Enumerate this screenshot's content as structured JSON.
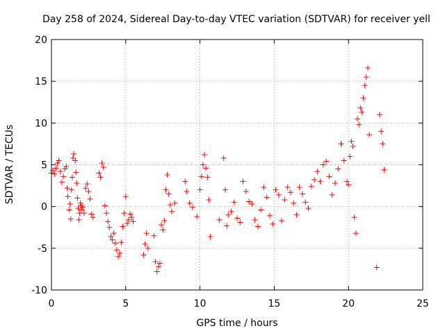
{
  "chart_data": {
    "type": "scatter",
    "title": "Day 258 of 2024, Sidereal Day-to-day VTEC variation (SDTVAR) for receiver yell",
    "xlabel": "GPS time / hours",
    "ylabel": "SDTVAR / TECUs",
    "xlim": [
      0,
      25
    ],
    "ylim": [
      -10,
      20
    ],
    "xticks": [
      0,
      5,
      10,
      15,
      20,
      25
    ],
    "yticks": [
      -10,
      -5,
      0,
      5,
      10,
      15,
      20
    ],
    "xtick_labels": [
      "0",
      "5",
      "10",
      "15",
      "20",
      "25"
    ],
    "ytick_labels": [
      "-10",
      "-5",
      "0",
      "5",
      "10",
      "15",
      "20"
    ],
    "grid": true,
    "marker": "+",
    "color": "#ff0000",
    "series": [
      {
        "name": "SDTVAR",
        "x": [
          0.0,
          0.1,
          0.2,
          0.3,
          0.4,
          0.5,
          0.6,
          0.7,
          0.8,
          0.9,
          1.0,
          1.05,
          1.1,
          1.2,
          1.25,
          1.3,
          1.35,
          1.4,
          1.45,
          1.5,
          1.6,
          1.65,
          1.7,
          1.75,
          1.8,
          1.85,
          1.9,
          1.95,
          2.0,
          2.05,
          2.1,
          2.2,
          2.3,
          2.4,
          2.5,
          2.6,
          2.7,
          2.8,
          3.2,
          3.3,
          3.4,
          3.5,
          3.6,
          3.7,
          3.8,
          3.9,
          4.0,
          4.1,
          4.2,
          4.3,
          4.4,
          4.5,
          4.6,
          4.7,
          4.8,
          4.9,
          5.0,
          5.1,
          5.2,
          5.3,
          5.4,
          5.5,
          6.2,
          6.3,
          6.4,
          6.5,
          6.9,
          7.0,
          7.1,
          7.2,
          7.3,
          7.4,
          7.5,
          7.6,
          7.7,
          7.8,
          7.9,
          8.0,
          8.1,
          8.3,
          9.0,
          9.1,
          9.3,
          9.5,
          9.8,
          10.0,
          10.1,
          10.2,
          10.3,
          10.4,
          10.5,
          10.6,
          10.7,
          11.3,
          11.6,
          11.7,
          11.8,
          11.9,
          12.1,
          12.3,
          12.5,
          12.7,
          12.9,
          13.1,
          13.3,
          13.5,
          13.7,
          13.9,
          14.1,
          14.3,
          14.5,
          14.7,
          14.9,
          15.1,
          15.3,
          15.5,
          15.7,
          15.9,
          16.1,
          16.3,
          16.5,
          16.7,
          16.9,
          17.1,
          17.3,
          17.5,
          17.7,
          17.9,
          18.1,
          18.3,
          18.5,
          18.7,
          18.9,
          19.1,
          19.3,
          19.5,
          19.7,
          19.9,
          20.0,
          20.1,
          20.2,
          20.3,
          20.4,
          20.5,
          20.6,
          20.7,
          20.8,
          20.9,
          21.0,
          21.1,
          21.2,
          21.3,
          21.4,
          21.9,
          22.1,
          22.2,
          22.3,
          22.4
        ],
        "y": [
          4.0,
          4.3,
          3.9,
          4.6,
          5.2,
          5.5,
          4.2,
          2.9,
          3.6,
          4.5,
          4.8,
          2.2,
          1.2,
          -0.4,
          0.3,
          -1.5,
          2.0,
          3.5,
          5.8,
          6.3,
          5.5,
          4.1,
          2.8,
          1.0,
          -0.2,
          -1.6,
          -0.8,
          0.4,
          0.1,
          -0.4,
          -0.1,
          -0.8,
          2.2,
          2.7,
          1.8,
          0.9,
          -0.9,
          -1.3,
          4.0,
          3.5,
          5.2,
          4.7,
          0.1,
          -0.8,
          -1.8,
          -2.5,
          -3.6,
          -4.0,
          -3.2,
          -4.4,
          -5.2,
          -6.0,
          -5.6,
          -4.3,
          -2.4,
          -0.8,
          1.2,
          -2.0,
          -1.6,
          -0.9,
          -1.3,
          -1.8,
          -5.8,
          -4.5,
          -3.2,
          -5.0,
          -3.5,
          -6.6,
          -7.8,
          -7.2,
          -6.8,
          -2.2,
          -2.8,
          -1.7,
          2.0,
          3.8,
          1.5,
          0.2,
          -0.6,
          0.4,
          3.0,
          1.8,
          0.4,
          -0.1,
          -1.2,
          2.0,
          3.6,
          5.0,
          6.2,
          4.6,
          3.5,
          0.8,
          -3.6,
          -1.6,
          5.8,
          2.0,
          -2.3,
          -1.0,
          -0.6,
          0.5,
          -1.4,
          -1.9,
          3.0,
          1.8,
          0.6,
          0.3,
          -1.6,
          -2.4,
          -0.4,
          2.3,
          1.1,
          -1.1,
          -2.1,
          2.0,
          1.4,
          -1.7,
          0.8,
          2.3,
          1.7,
          0.4,
          -1.0,
          2.3,
          1.5,
          0.5,
          -0.2,
          2.4,
          3.2,
          4.2,
          3.0,
          5.0,
          5.4,
          3.6,
          1.4,
          2.8,
          4.5,
          7.5,
          5.5,
          3.0,
          2.6,
          6.0,
          7.8,
          7.2,
          -1.3,
          -3.2,
          10.5,
          9.8,
          11.8,
          11.3,
          13.0,
          14.5,
          15.5,
          16.6,
          8.6,
          -7.3,
          11.0,
          9.0,
          7.5,
          4.4
        ]
      }
    ]
  }
}
